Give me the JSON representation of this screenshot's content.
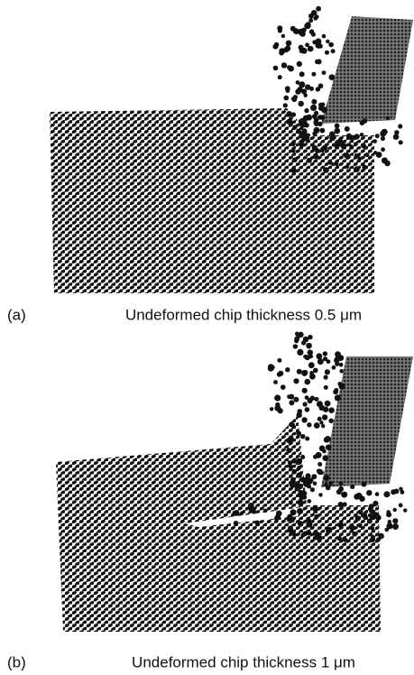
{
  "figure": {
    "panels": [
      {
        "label": "(a)",
        "caption": "Undeformed chip thickness 0.5 μm"
      },
      {
        "label": "(b)",
        "caption": "Undeformed chip thickness 1 μm"
      }
    ]
  }
}
